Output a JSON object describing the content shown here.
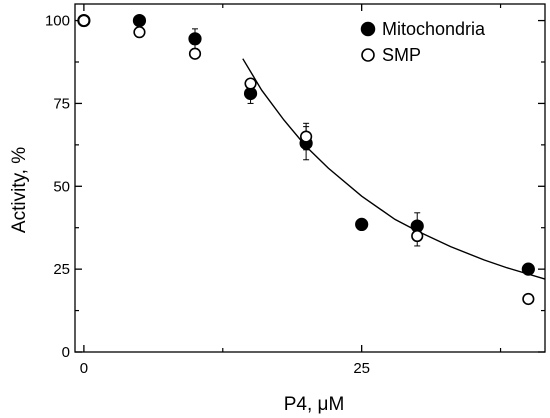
{
  "chart_data": {
    "type": "scatter",
    "xlabel": "P4, μM",
    "ylabel": "Activity, %",
    "xlim": [
      -0.8,
      41.5
    ],
    "ylim": [
      0,
      105
    ],
    "x_ticks": [
      0,
      25
    ],
    "x_minor_ticks": [
      12.5,
      37.5
    ],
    "y_ticks": [
      0,
      25,
      50,
      75,
      100
    ],
    "y_minor_ticks": [
      12.5,
      37.5,
      62.5,
      87.5
    ],
    "grid": false,
    "legend_position": "top-right",
    "series": [
      {
        "name": "Mitochondria",
        "marker": "filled-circle",
        "color": "#000000",
        "points": [
          {
            "x": 0,
            "y": 100,
            "err": 0
          },
          {
            "x": 5,
            "y": 100,
            "err": 0
          },
          {
            "x": 10,
            "y": 94.5,
            "err": 3
          },
          {
            "x": 15,
            "y": 78,
            "err": 3
          },
          {
            "x": 20,
            "y": 63,
            "err": 5
          },
          {
            "x": 25,
            "y": 38.5,
            "err": 0
          },
          {
            "x": 30,
            "y": 38,
            "err": 4
          },
          {
            "x": 40,
            "y": 25,
            "err": 0
          }
        ]
      },
      {
        "name": "SMP",
        "marker": "open-circle",
        "color": "#000000",
        "points": [
          {
            "x": 0,
            "y": 100,
            "err": 0
          },
          {
            "x": 5,
            "y": 96.5,
            "err": 0
          },
          {
            "x": 10,
            "y": 90,
            "err": 0
          },
          {
            "x": 15,
            "y": 81,
            "err": 0
          },
          {
            "x": 20,
            "y": 65,
            "err": 4
          },
          {
            "x": 30,
            "y": 35,
            "err": 3
          },
          {
            "x": 40,
            "y": 16,
            "err": 0
          }
        ]
      }
    ],
    "fit_curve": {
      "x": [
        14.3,
        16,
        18,
        20,
        22,
        25,
        28,
        30,
        33,
        36,
        38,
        41.5
      ],
      "y": [
        88.5,
        79,
        70,
        62,
        55.5,
        47,
        40,
        36.5,
        31.8,
        27.8,
        25.5,
        22
      ]
    }
  }
}
